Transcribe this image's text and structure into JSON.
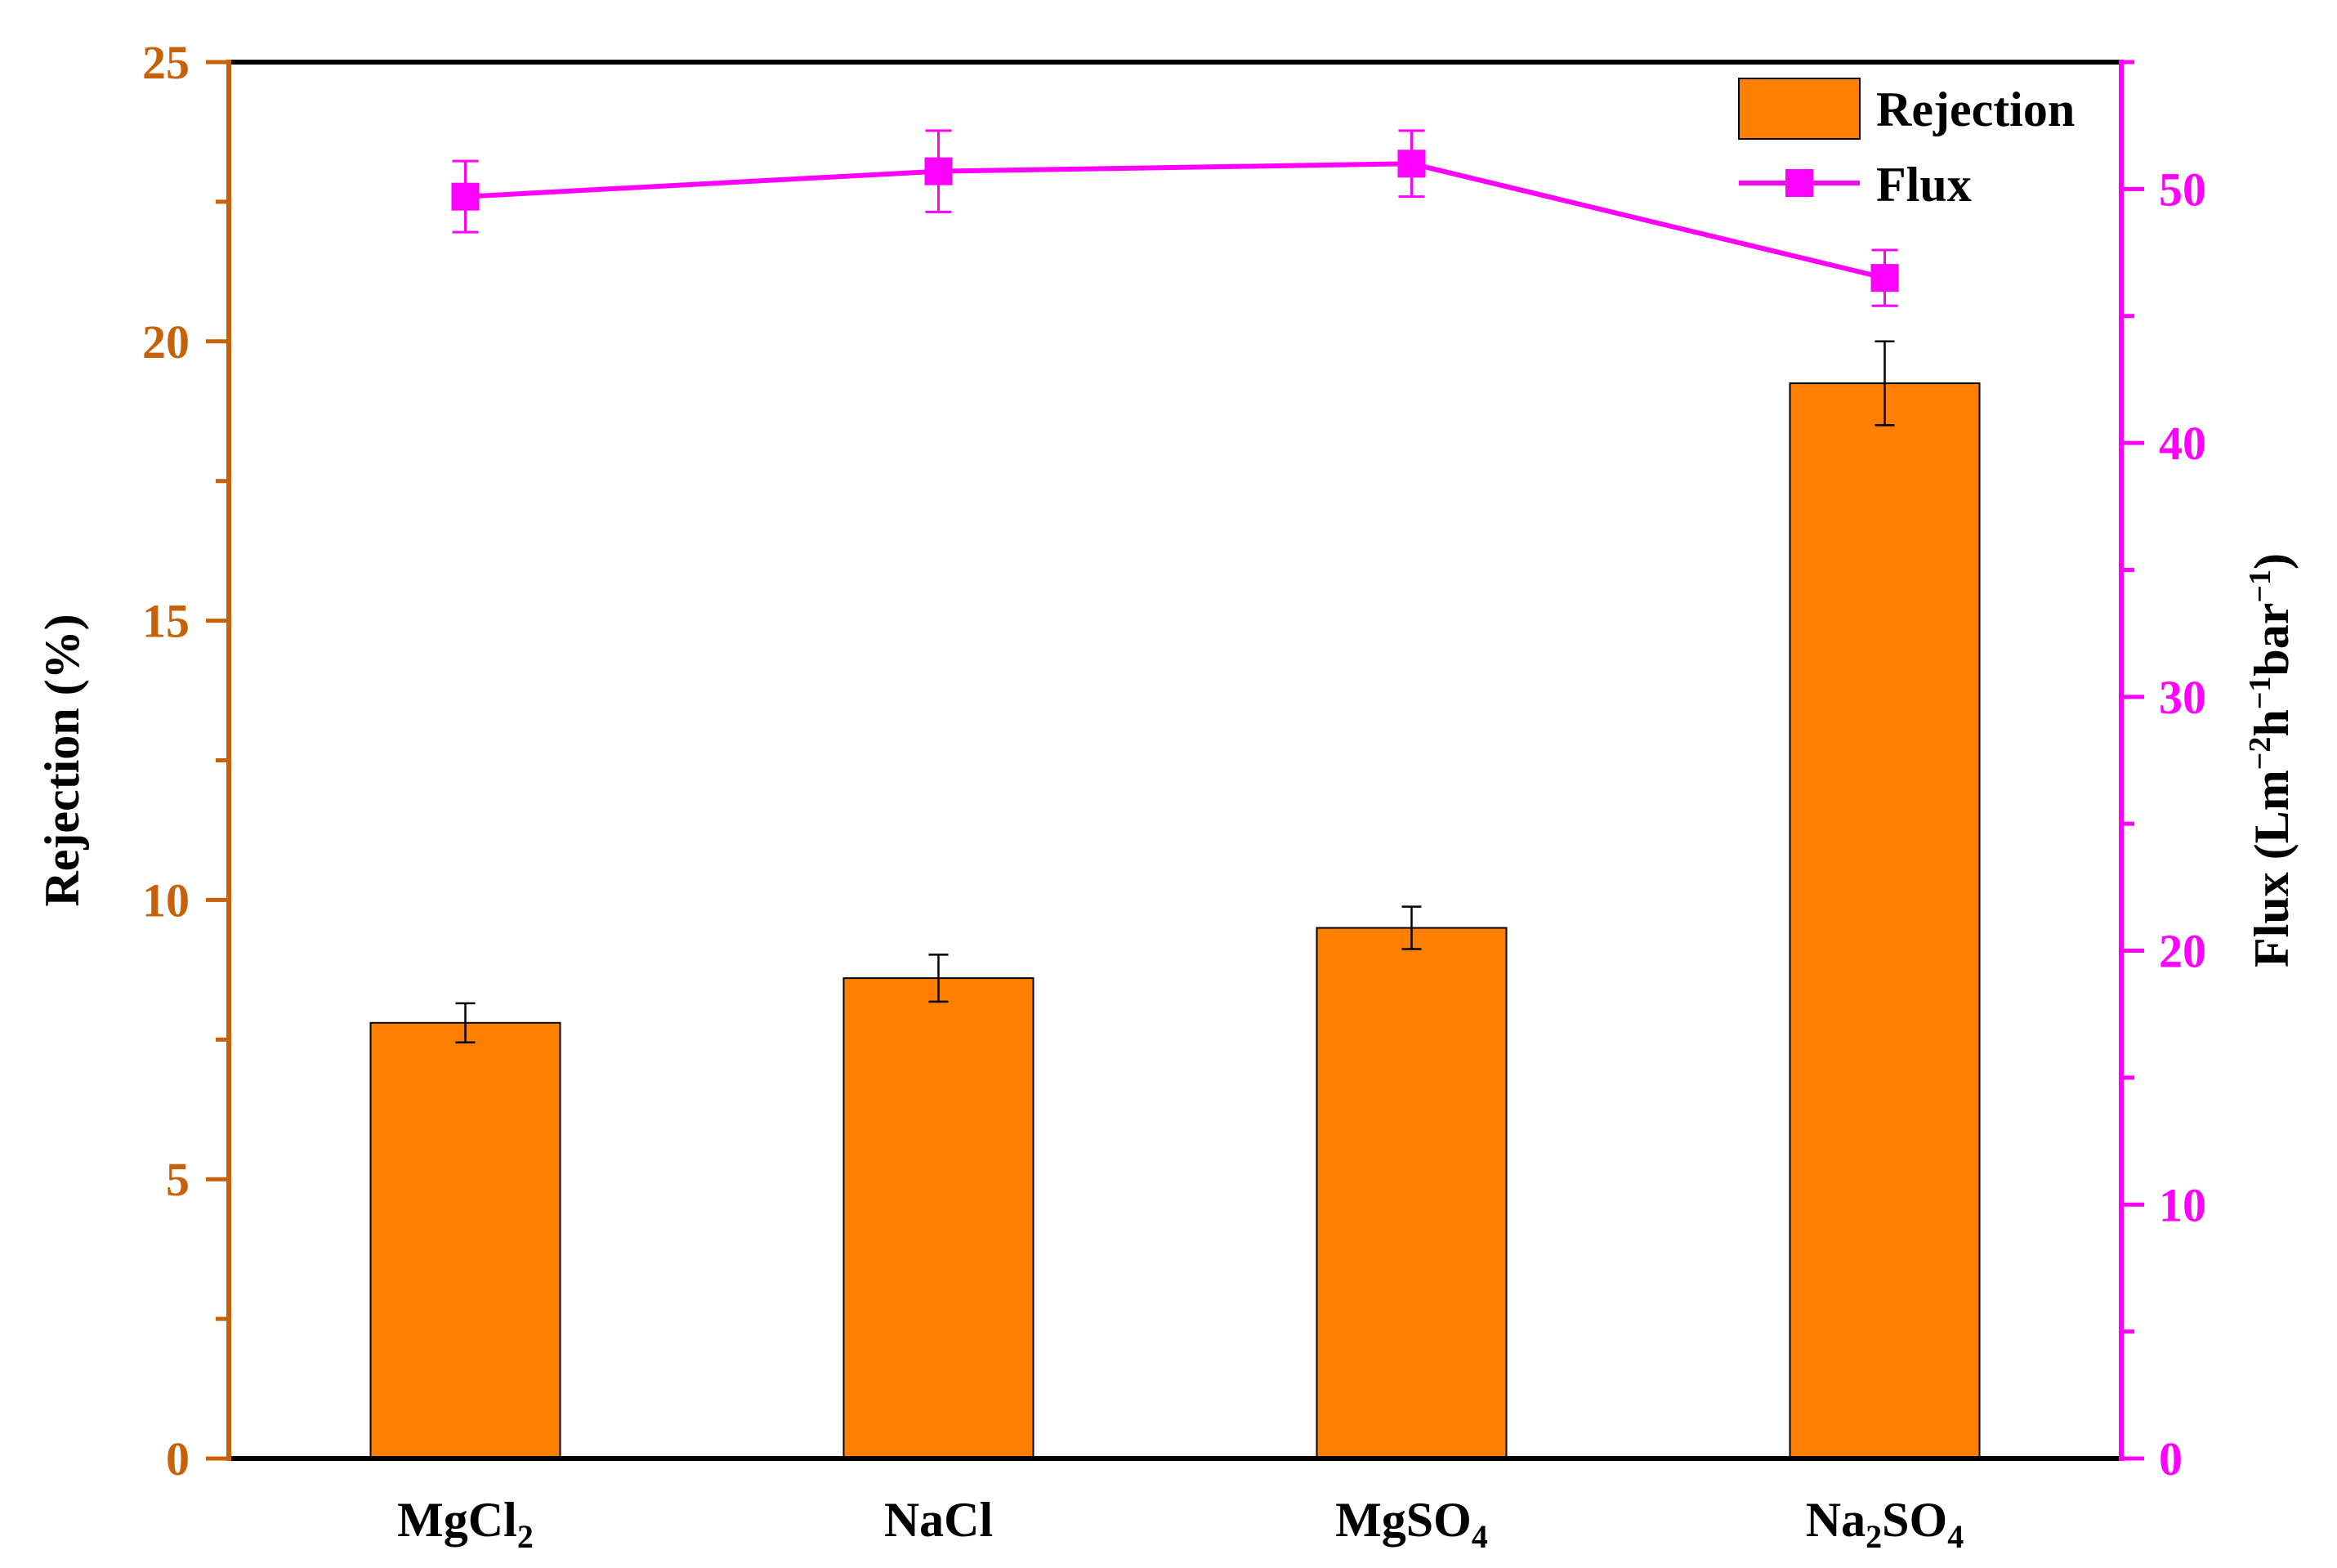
{
  "colors": {
    "bar_fill": "#FF8000",
    "bar_stroke": "#000000",
    "left_axis": "#C8620A",
    "right_axis": "#FF00FF",
    "line": "#FF00FF",
    "frame": "#000000"
  },
  "chart_data": {
    "type": "bar",
    "categories": [
      {
        "main": "MgCl",
        "sub": "2",
        "tail": ""
      },
      {
        "main": "NaCl",
        "sub": "",
        "tail": ""
      },
      {
        "main": "MgSO",
        "sub": "4",
        "tail": ""
      },
      {
        "main": "Na",
        "sub": "2",
        "tail": "SO",
        "sub2": "4"
      }
    ],
    "series": [
      {
        "name": "Rejection",
        "type": "bar",
        "axis": "left",
        "values": [
          7.8,
          8.6,
          9.5,
          19.25
        ],
        "errors": [
          0.35,
          0.42,
          0.38,
          0.75
        ]
      },
      {
        "name": "Flux",
        "type": "line",
        "axis": "right",
        "marker": "square",
        "values": [
          49.7,
          50.7,
          51.0,
          46.5
        ],
        "errors": [
          1.4,
          1.6,
          1.3,
          1.1
        ]
      }
    ],
    "y_left": {
      "label": "Rejection (%)",
      "min": 0,
      "max": 25,
      "ticks": [
        0,
        5,
        10,
        15,
        20,
        25
      ],
      "minor_step": 2.5
    },
    "y_right": {
      "label_parts": [
        {
          "t": "Flux (Lm",
          "sup": false
        },
        {
          "t": "−2",
          "sup": true
        },
        {
          "t": "h",
          "sup": false
        },
        {
          "t": "−1",
          "sup": true
        },
        {
          "t": "bar",
          "sup": false
        },
        {
          "t": "−1",
          "sup": true
        },
        {
          "t": ")",
          "sup": false
        }
      ],
      "min": 0,
      "max": 55,
      "ticks": [
        0,
        10,
        20,
        30,
        40,
        50
      ],
      "minor_step": 5
    },
    "legend": {
      "position": "top-right",
      "entries": [
        "Rejection",
        "Flux"
      ]
    },
    "grid": false
  }
}
